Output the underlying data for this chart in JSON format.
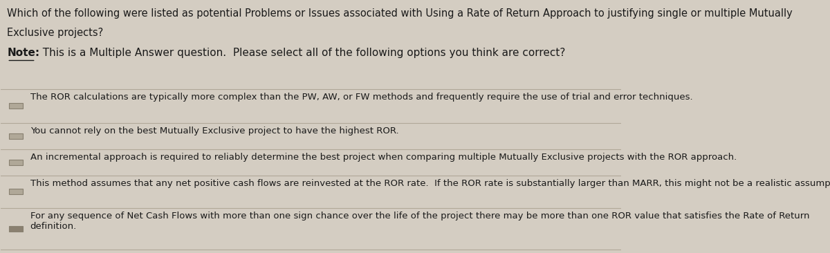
{
  "bg_color": "#d4cdc2",
  "text_color": "#1a1a1a",
  "title_lines": [
    "Which of the following were listed as potential Problems or Issues associated with Using a Rate of Return Approach to justifying single or multiple Mutually",
    "Exclusive projects?"
  ],
  "note_label": "Note:",
  "note_text": "  This is a Multiple Answer question.  Please select all of the following options you think are correct?",
  "options": [
    "The ROR calculations are typically more complex than the PW, AW, or FW methods and frequently require the use of trial and error techniques.",
    "You cannot rely on the best Mutually Exclusive project to have the highest ROR.",
    "An incremental approach is required to reliably determine the best project when comparing multiple Mutually Exclusive projects with the ROR approach.",
    "This method assumes that any net positive cash flows are reinvested at the ROR rate.  If the ROR rate is substantially larger than MARR, this might not be a realistic assumption.",
    "For any sequence of Net Cash Flows with more than one sign chance over the life of the project there may be more than one ROR value that satisfies the Rate of Return\ndefinition."
  ],
  "checkbox_color": "#b0a898",
  "checkbox_selected_color": "#8a8070",
  "divider_color": "#b0a898",
  "title_fontsize": 10.5,
  "note_fontsize": 11.0,
  "option_fontsize": 9.5,
  "figsize": [
    12.0,
    3.66
  ]
}
